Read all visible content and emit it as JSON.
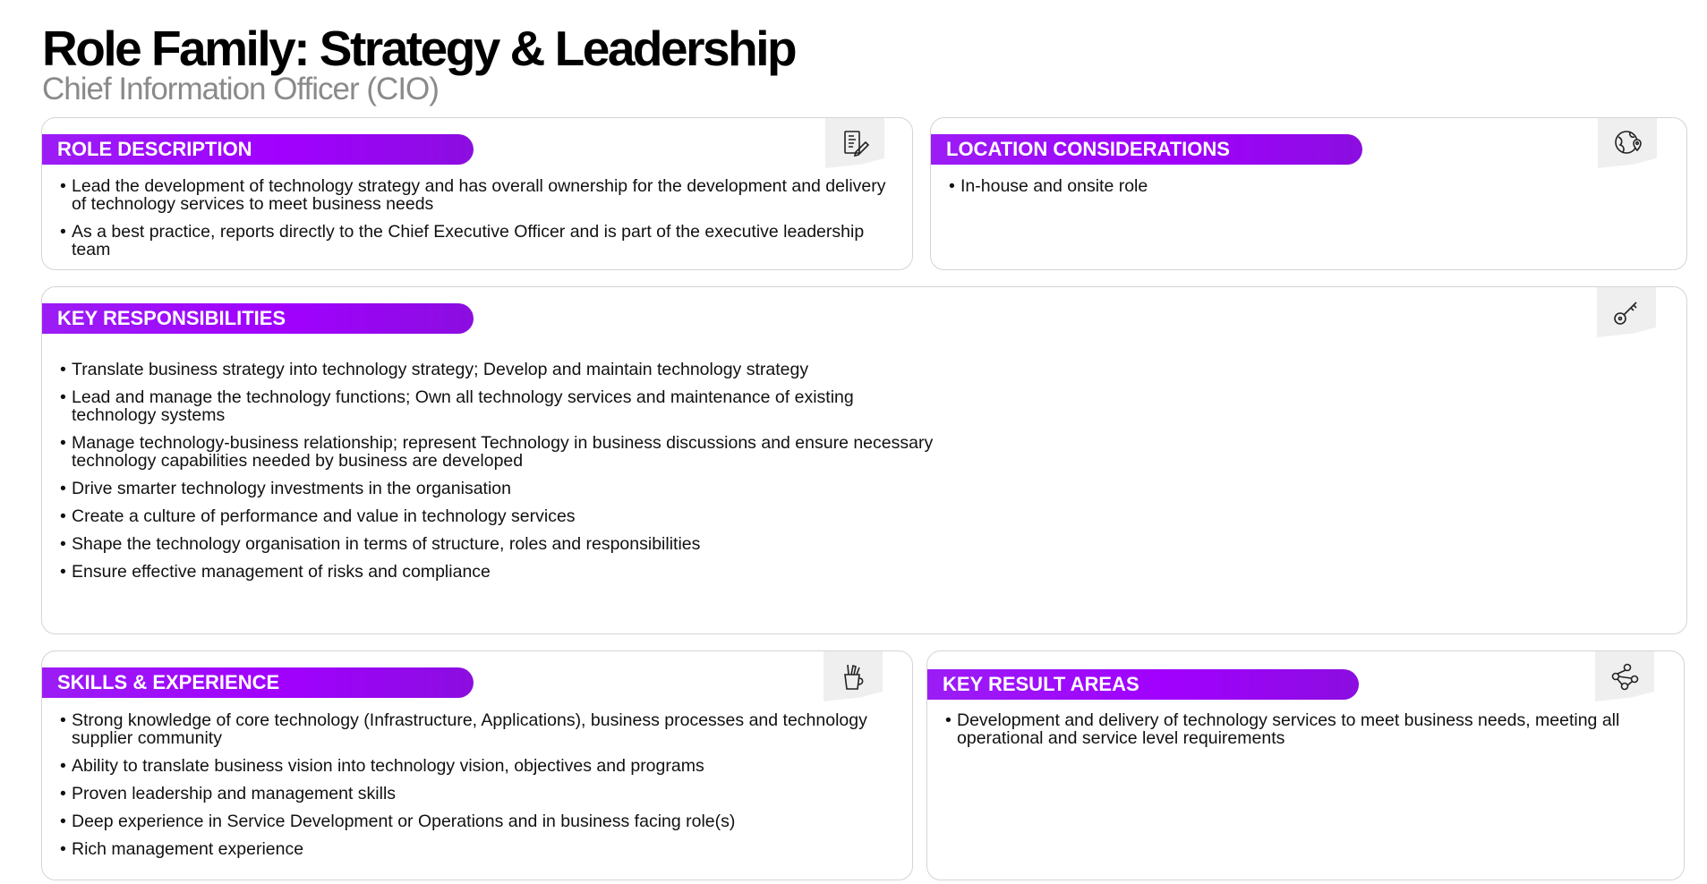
{
  "page": {
    "title": "Role Family: Strategy & Leadership",
    "subtitle": "Chief Information Officer (CIO)"
  },
  "role_description": {
    "heading": "ROLE DESCRIPTION",
    "icon": "document-edit-icon",
    "items": [
      "Lead the development of technology strategy and has overall ownership for the development and delivery of technology services to meet business needs",
      "As a best practice, reports directly to the Chief Executive Officer and is part of the executive leadership team"
    ]
  },
  "location_considerations": {
    "heading": "LOCATION CONSIDERATIONS",
    "icon": "globe-location-icon",
    "items": [
      "In-house and onsite role"
    ]
  },
  "key_responsibilities": {
    "heading": "KEY RESPONSIBILITIES",
    "icon": "key-icon",
    "items": [
      "Translate business strategy into technology strategy; Develop and maintain technology strategy",
      "Lead and manage the technology functions; Own all technology services and maintenance of existing technology systems",
      "Manage technology-business relationship; represent Technology in business discussions and ensure necessary technology capabilities needed by business are developed",
      "Drive smarter technology investments in the organisation",
      "Create a culture of performance and value in technology services",
      "Shape the technology organisation in terms of structure, roles and responsibilities",
      "Ensure effective management of risks and compliance"
    ]
  },
  "skills_experience": {
    "heading": "SKILLS & EXPERIENCE",
    "icon": "pencil-cup-icon",
    "items": [
      "Strong knowledge of core technology (Infrastructure, Applications), business processes and technology supplier community",
      "Ability to translate business vision into technology vision, objectives and programs",
      "Proven leadership and management skills",
      "Deep experience in Service Development or Operations and in business facing role(s)",
      "Rich management experience"
    ]
  },
  "key_result_areas": {
    "heading": "KEY RESULT AREAS",
    "icon": "network-nodes-icon",
    "items": [
      "Development and delivery of technology services to meet business needs, meeting all operational and service level requirements"
    ]
  },
  "colors": {
    "accent": "#a100ff",
    "subtitle": "#8a8a8a",
    "card_border": "#d4d4d4",
    "icon_tab": "#efefef"
  }
}
